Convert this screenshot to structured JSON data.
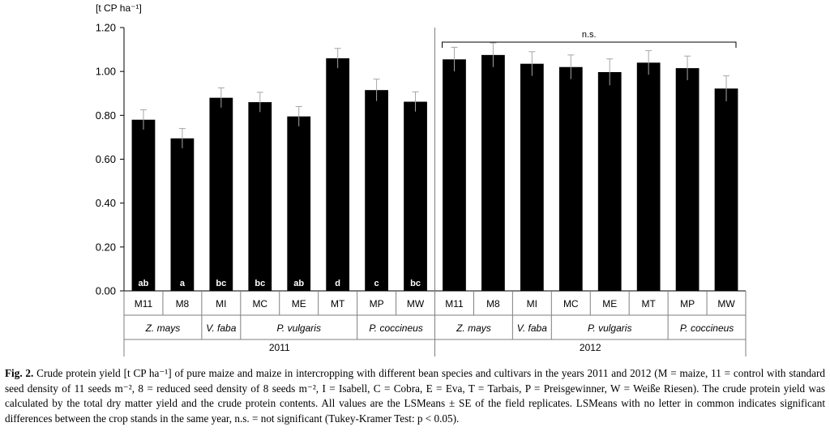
{
  "chart_data": {
    "type": "bar",
    "ylabel": "[t CP ha⁻¹]",
    "ylim": [
      0,
      1.2
    ],
    "yticks": [
      "0.00",
      "0.20",
      "0.40",
      "0.60",
      "0.80",
      "1.00",
      "1.20"
    ],
    "bar_color": "#000000",
    "error_bar_color": "#a6a6a6",
    "grid": false,
    "years": [
      {
        "year": "2011",
        "bars": [
          {
            "cat": "M11",
            "value": 0.78,
            "se": 0.045,
            "letter": "ab"
          },
          {
            "cat": "M8",
            "value": 0.695,
            "se": 0.045,
            "letter": "a"
          },
          {
            "cat": "MI",
            "value": 0.88,
            "se": 0.045,
            "letter": "bc"
          },
          {
            "cat": "MC",
            "value": 0.86,
            "se": 0.045,
            "letter": "bc"
          },
          {
            "cat": "ME",
            "value": 0.795,
            "se": 0.045,
            "letter": "ab"
          },
          {
            "cat": "MT",
            "value": 1.06,
            "se": 0.045,
            "letter": "d"
          },
          {
            "cat": "MP",
            "value": 0.915,
            "se": 0.05,
            "letter": "c"
          },
          {
            "cat": "MW",
            "value": 0.862,
            "se": 0.045,
            "letter": "bc"
          }
        ],
        "species": [
          {
            "name": "Z. mays",
            "from": 0,
            "to": 1
          },
          {
            "name": "V. faba",
            "from": 2,
            "to": 2
          },
          {
            "name": "P. vulgaris",
            "from": 3,
            "to": 5
          },
          {
            "name": "P. coccineus",
            "from": 6,
            "to": 7
          }
        ]
      },
      {
        "year": "2012",
        "bars": [
          {
            "cat": "M11",
            "value": 1.055,
            "se": 0.055,
            "letter": ""
          },
          {
            "cat": "M8",
            "value": 1.075,
            "se": 0.055,
            "letter": ""
          },
          {
            "cat": "MI",
            "value": 1.035,
            "se": 0.055,
            "letter": ""
          },
          {
            "cat": "MC",
            "value": 1.02,
            "se": 0.055,
            "letter": ""
          },
          {
            "cat": "ME",
            "value": 0.997,
            "se": 0.06,
            "letter": ""
          },
          {
            "cat": "MT",
            "value": 1.04,
            "se": 0.055,
            "letter": ""
          },
          {
            "cat": "MP",
            "value": 1.015,
            "se": 0.055,
            "letter": ""
          },
          {
            "cat": "MW",
            "value": 0.922,
            "se": 0.058,
            "letter": ""
          }
        ],
        "species": [
          {
            "name": "Z. mays",
            "from": 0,
            "to": 1
          },
          {
            "name": "V. faba",
            "from": 2,
            "to": 2
          },
          {
            "name": "P. vulgaris",
            "from": 3,
            "to": 5
          },
          {
            "name": "P. coccineus",
            "from": 6,
            "to": 7
          }
        ]
      }
    ],
    "annotations": [
      {
        "text": "n.s.",
        "year": "2012"
      }
    ]
  },
  "caption": {
    "label": "Fig. 2.",
    "text": "Crude protein yield [t CP ha⁻¹] of pure maize and maize in intercropping with different bean species and cultivars in the years 2011 and 2012 (M = maize, 11 = control with standard seed density of 11 seeds m⁻², 8 = reduced seed density of 8 seeds m⁻², I = Isabell, C = Cobra, E = Eva, T = Tarbais, P = Preisgewinner, W = Weiße Riesen). The crude protein yield was calculated by the total dry matter yield and the crude protein contents. All values are the LSMeans ± SE of the field replicates. LSMeans with no letter in common indicates significant differences between the crop stands in the same year, n.s. = not significant (Tukey-Kramer Test: p < 0.05)."
  }
}
